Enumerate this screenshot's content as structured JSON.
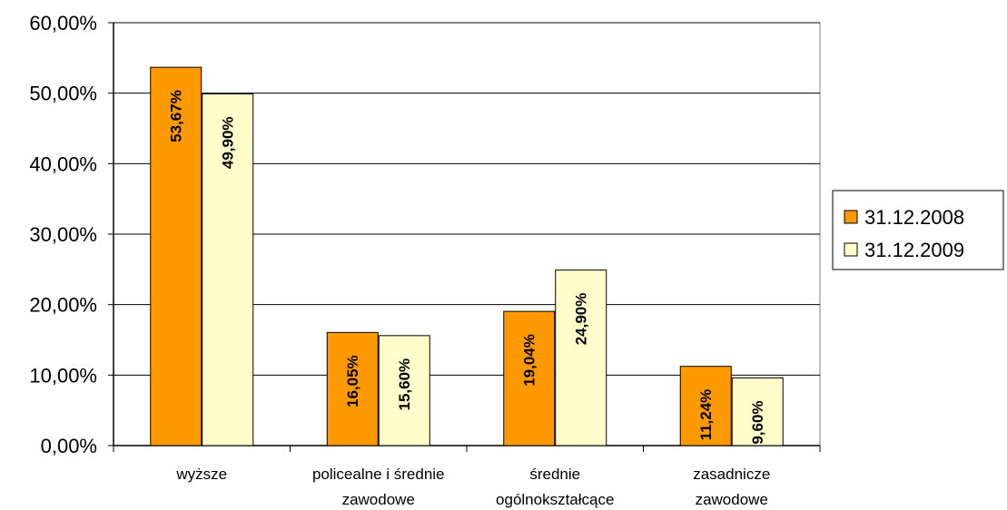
{
  "chart_data": {
    "type": "bar",
    "categories": [
      [
        "wyższe"
      ],
      [
        "policealne i średnie",
        "zawodowe"
      ],
      [
        "średnie",
        "ogólnokształcące"
      ],
      [
        "zasadnicze",
        "zawodowe"
      ]
    ],
    "series": [
      {
        "name": "31.12.2008",
        "color": "#FF9900",
        "values": [
          53.67,
          16.05,
          19.04,
          11.24
        ],
        "labels": [
          "53,67%",
          "16,05%",
          "19,04%",
          "11,24%"
        ]
      },
      {
        "name": "31.12.2009",
        "color": "#FFFFCC",
        "values": [
          49.9,
          15.6,
          24.9,
          9.6
        ],
        "labels": [
          "49,90%",
          "15,60%",
          "24,90%",
          "9,60%"
        ]
      }
    ],
    "ylim": [
      0,
      60
    ],
    "yticks": [
      {
        "value": 0,
        "label": "0,00%"
      },
      {
        "value": 10,
        "label": "10,00%"
      },
      {
        "value": 20,
        "label": "20,00%"
      },
      {
        "value": 30,
        "label": "30,00%"
      },
      {
        "value": 40,
        "label": "40,00%"
      },
      {
        "value": 50,
        "label": "50,00%"
      },
      {
        "value": 60,
        "label": "60,00%"
      }
    ],
    "grid": true,
    "legend_position": "right",
    "title": "",
    "xlabel": "",
    "ylabel": ""
  }
}
